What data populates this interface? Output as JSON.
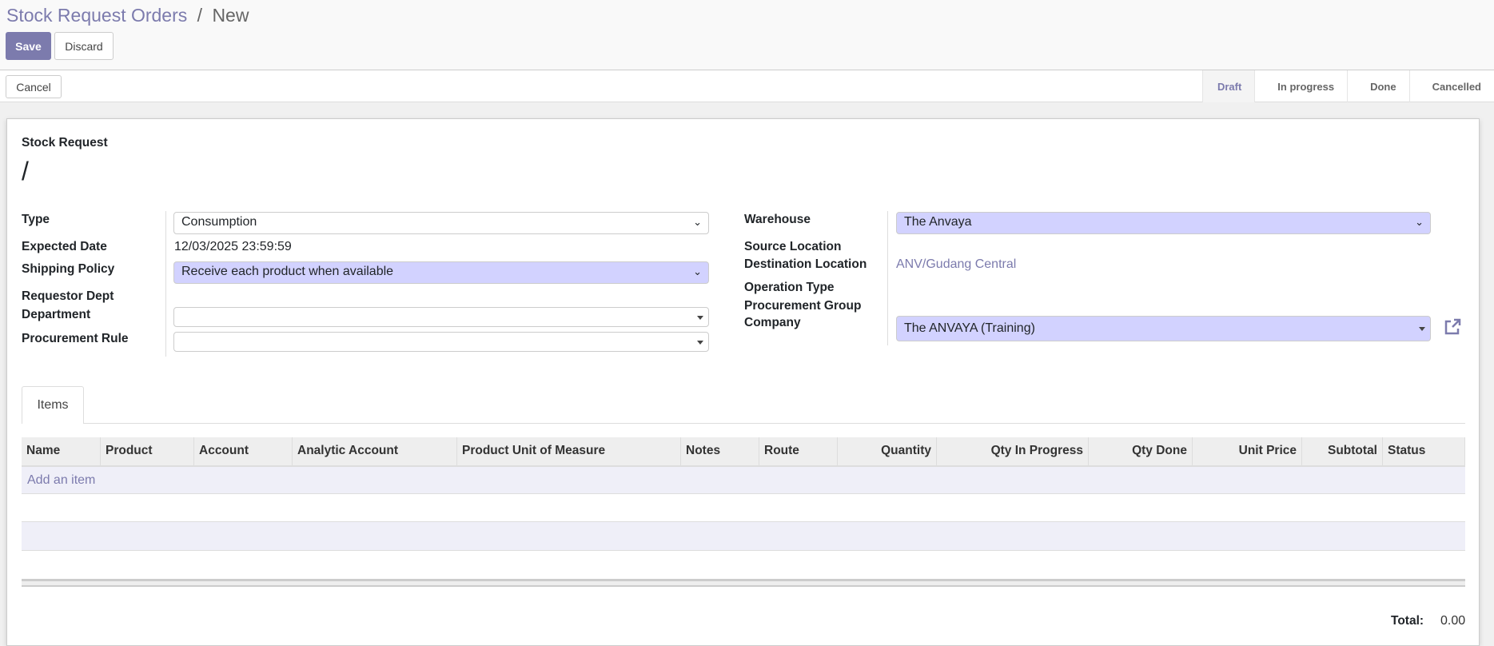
{
  "breadcrumb": {
    "parent": "Stock Request Orders",
    "separator": "/",
    "current": "New"
  },
  "toolbar": {
    "save_label": "Save",
    "discard_label": "Discard",
    "cancel_label": "Cancel"
  },
  "statusbar": {
    "stages": [
      {
        "label": "Draft",
        "active": true
      },
      {
        "label": "In progress",
        "active": false
      },
      {
        "label": "Done",
        "active": false
      },
      {
        "label": "Cancelled",
        "active": false
      }
    ]
  },
  "sheet": {
    "title_label": "Stock Request",
    "name": "/"
  },
  "left_fields": {
    "type_label": "Type",
    "type_value": "Consumption",
    "expected_date_label": "Expected Date",
    "expected_date_value": "12/03/2025 23:59:59",
    "shipping_policy_label": "Shipping Policy",
    "shipping_policy_value": "Receive each product when available",
    "requestor_dept_label": "Requestor Dept",
    "department_label": "Department",
    "department_value": "",
    "procurement_rule_label": "Procurement Rule",
    "procurement_rule_value": ""
  },
  "right_fields": {
    "warehouse_label": "Warehouse",
    "warehouse_value": "The Anvaya",
    "source_location_label": "Source Location",
    "destination_location_label": "Destination Location",
    "destination_location_value": "ANV/Gudang Central",
    "operation_type_label": "Operation Type",
    "procurement_group_label": "Procurement Group",
    "company_label": "Company",
    "company_value": "The ANVAYA (Training)"
  },
  "tabs": [
    {
      "label": "Items",
      "active": true
    }
  ],
  "table": {
    "columns": [
      "Name",
      "Product",
      "Account",
      "Analytic Account",
      "Product Unit of Measure",
      "Notes",
      "Route",
      "Quantity",
      "Qty In Progress",
      "Qty Done",
      "Unit Price",
      "Subtotal",
      "Status"
    ],
    "add_item_label": "Add an item",
    "rows": []
  },
  "total": {
    "label": "Total:",
    "value": "0.00"
  },
  "colors": {
    "accent": "#7c7bad",
    "required_field": "#d2d2ff",
    "row_stripe": "#efeff8"
  }
}
